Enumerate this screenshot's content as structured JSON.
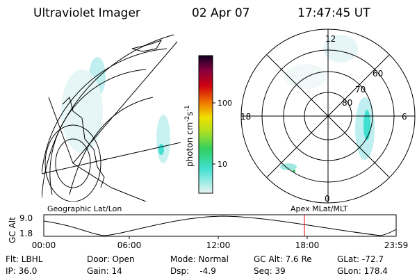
{
  "header": {
    "title": "Ultraviolet Imager",
    "date": "02 Apr 07",
    "time": "17:47:45 UT"
  },
  "colorbar": {
    "unit": {
      "base": "photon cm",
      "exp1": "-2",
      "mid": "s",
      "exp2": "-1"
    },
    "ticks": [
      "100",
      "10"
    ]
  },
  "geo_map": {
    "label": "Geographic Lat/Lon"
  },
  "polar_map": {
    "label": "Apex MLat/MLT",
    "mlt": [
      "12",
      "18",
      "6",
      "0"
    ],
    "mlat": [
      "60",
      "70",
      "80"
    ]
  },
  "timeline": {
    "y_label": "GC Alt",
    "y_ticks": [
      "9.0",
      "1.8"
    ],
    "x_ticks": [
      "00:00",
      "06:00",
      "12:00",
      "18:00",
      "23:59"
    ]
  },
  "info": [
    [
      "Flt: LBHL",
      "Door: Open",
      "Mode: Normal",
      "GC Alt: 7.6 Re",
      "GLat: -72.7"
    ],
    [
      "IP: 36.0",
      "Gain: 14",
      "Dsp:    -4.9",
      "Seq: 39",
      "GLon: 178.4"
    ]
  ]
}
